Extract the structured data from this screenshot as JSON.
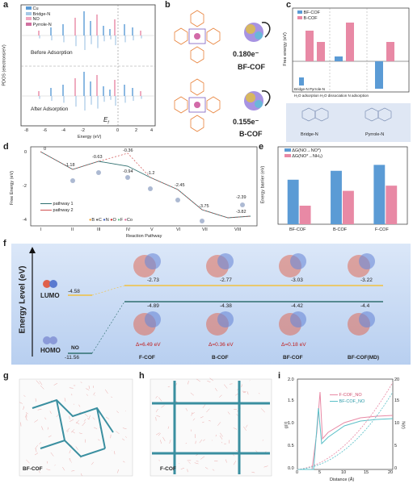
{
  "figure": {
    "panel_letters": [
      "a",
      "b",
      "c",
      "d",
      "e",
      "f",
      "g",
      "h",
      "i"
    ],
    "colors": {
      "blue": "#5b9bd5",
      "pink": "#e889a5",
      "panel_f_bg": "#c8daf5",
      "yellow": "#f0c040",
      "dark_green": "#2f6f6f"
    }
  },
  "panel_a": {
    "legend": [
      "Cu",
      "Bridge-N",
      "NO",
      "Pyrrole-N"
    ],
    "label_before": "Before Adsorption",
    "label_after": "After Adsorption",
    "fermi_label": "E",
    "fermi_sub": "f",
    "ylabel": "PDOS (electrons/eV)",
    "xlabel": "Energy (eV)",
    "xticks": [
      "-8",
      "-6",
      "-4",
      "-2",
      "0",
      "2",
      "4"
    ]
  },
  "panel_b": {
    "value_top": "0.180e⁻",
    "label_top": "BF-COF",
    "value_bottom": "0.155e⁻",
    "label_bottom": "B-COF"
  },
  "panel_c": {
    "legend": [
      "BF-COF",
      "B-COF"
    ],
    "ylabel": "Free energy (eV)",
    "xcats_line1": "Bridge-N  Pyrrole-N",
    "xcats_line2": "H₂O adsorption    H₂O dissociation   N adsorption",
    "site_labels": [
      "Bridge-N",
      "Pyrrole-N"
    ]
  },
  "panel_d": {
    "ylabel": "Free Energy (eV)",
    "xlabel": "Reaction Pathway",
    "roman": [
      "I",
      "II",
      "III",
      "IV",
      "V",
      "VI",
      "VII",
      "VIII"
    ],
    "legend": [
      "pathway 1",
      "pathway 2"
    ],
    "energies": [
      "0",
      "-1.18",
      "-0.63",
      "-0.94",
      "-0.36",
      "-1.2",
      "-2.45",
      "-3.75",
      "-3.82",
      "-2.39"
    ],
    "elements": [
      "B",
      "C",
      "N",
      "O",
      "F",
      "Co"
    ],
    "yticks": [
      "0",
      "-2",
      "-4"
    ]
  },
  "panel_e": {
    "ylabel": "Energy barrier (eV)",
    "legend": [
      "ΔG(NO→NO*)",
      "ΔG(NO*→NH₃)"
    ],
    "chart_data": {
      "type": "bar",
      "categories": [
        "BF-COF",
        "B-COF",
        "F-COF"
      ],
      "series": [
        {
          "name": "ΔG(NO→NO*)",
          "values": [
            0.6,
            0.72,
            0.8
          ]
        },
        {
          "name": "ΔG(NO*→NH₃)",
          "values": [
            0.25,
            0.45,
            0.52
          ]
        }
      ],
      "ylim": [
        0,
        1
      ]
    }
  },
  "panel_f": {
    "ylabel": "Energy Level (eV)",
    "lumo": "LUMO",
    "homo": "HOMO",
    "lumo_vals": [
      "-4.58",
      "-2.73",
      "-2.77",
      "-3.03",
      "-3.22"
    ],
    "homo_vals": [
      "-11.56",
      "-4.89",
      "-4.38",
      "-4.42",
      "-4.4"
    ],
    "gaps": [
      "Δ=6.49 eV",
      "Δ=0.36 eV",
      "Δ=0.18 eV"
    ],
    "labels": [
      "NO",
      "F-COF",
      "B-COF",
      "BF-COF",
      "BF-COF(MD)"
    ]
  },
  "panel_g": {
    "label": "BF-COF"
  },
  "panel_h": {
    "label": "F-COF"
  },
  "panel_i": {
    "legend": [
      "F-COF_NO",
      "BF-COF_NO"
    ],
    "xlabel": "Distance (Å)",
    "ylabel_left": "g(r)",
    "ylabel_right": "N(r)",
    "xticks": [
      "0",
      "5",
      "10",
      "15",
      "20"
    ],
    "yticks_left": [
      "0.0",
      "0.5",
      "1.0",
      "1.5",
      "2.0"
    ],
    "yticks_right": [
      "0",
      "5",
      "10",
      "15",
      "20"
    ]
  }
}
